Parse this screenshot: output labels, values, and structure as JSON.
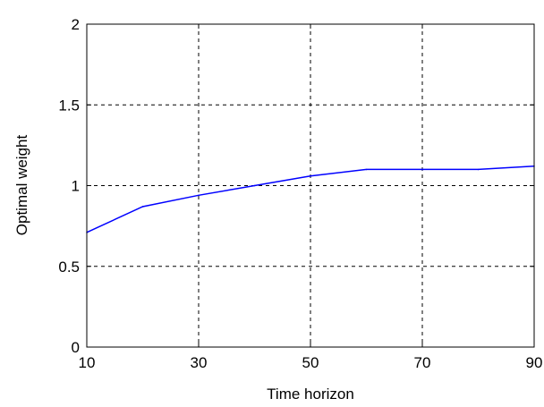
{
  "chart_data": {
    "type": "line",
    "title": "",
    "xlabel": "Time horizon",
    "ylabel": "Optimal weight",
    "xlim": [
      10,
      90
    ],
    "ylim": [
      0,
      2
    ],
    "xticks": [
      10,
      30,
      50,
      70,
      90
    ],
    "xtick_labels": [
      "10",
      "30",
      "50",
      "70",
      "90"
    ],
    "yticks": [
      0,
      0.5,
      1,
      1.5,
      2
    ],
    "ytick_labels": [
      "0",
      "0.5",
      "1",
      "1.5",
      "2"
    ],
    "grid": true,
    "grid_style": "dashed",
    "legend": "none",
    "series": [
      {
        "color": "#0000ff",
        "x": [
          10,
          20,
          30,
          40,
          50,
          60,
          70,
          80,
          90
        ],
        "y": [
          0.71,
          0.87,
          0.94,
          1.0,
          1.06,
          1.1,
          1.1,
          1.1,
          1.12
        ]
      }
    ]
  }
}
